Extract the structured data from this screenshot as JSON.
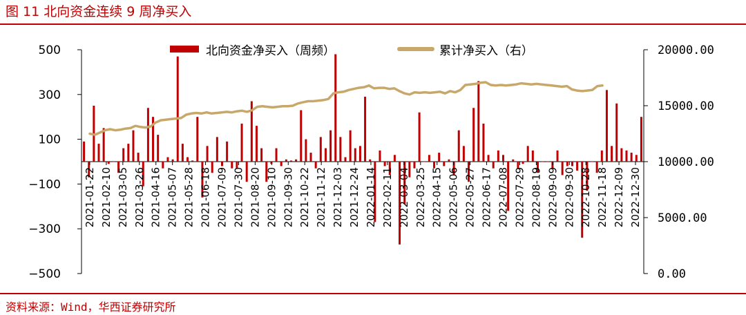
{
  "header": {
    "title": "图 11  北向资金连续 9 周净买入"
  },
  "footer": {
    "source": "资料来源：Wind，华西证券研究所"
  },
  "colors": {
    "bar": "#c00000",
    "line": "#c8a86a",
    "accent": "#c00000"
  },
  "chart_data": {
    "type": "bar+line",
    "title": "",
    "xlabel": "",
    "ylabel": "",
    "ylim": [
      -500,
      500
    ],
    "ylim_right": [
      0,
      20000
    ],
    "yticks": [
      "500",
      "300",
      "100",
      "−100",
      "−300",
      "−500"
    ],
    "yticks_right": [
      "20000.00",
      "15000.00",
      "10000.00",
      "5000.00",
      "0.00"
    ],
    "x_tick_labels": [
      "2021-01-22",
      "2021-02-10",
      "2021-03-05",
      "2021-03-26",
      "2021-04-16",
      "2021-05-07",
      "2021-05-28",
      "2021-06-18",
      "2021-07-09",
      "2021-07-30",
      "2021-08-20",
      "2021-09-10",
      "2021-09-30",
      "2021-10-22",
      "2021-11-12",
      "2021-12-03",
      "2021-12-24",
      "2022-01-14",
      "2022-02-11",
      "2022-03-04",
      "2022-03-25",
      "2022-04-15",
      "2022-05-06",
      "2022-05-27",
      "2022-06-17",
      "2022-07-08",
      "2022-07-29",
      "2022-08-19",
      "2022-09-09",
      "2022-09-30",
      "2022-10-28",
      "2022-11-18",
      "2022-12-09",
      "2022-12-30"
    ],
    "legend_position": "top-center",
    "series": [
      {
        "name": "北向资金净买入（周频）",
        "type": "bar",
        "axis": "left",
        "values": [
          90,
          -70,
          250,
          80,
          150,
          -10,
          0,
          -50,
          60,
          80,
          140,
          40,
          -110,
          240,
          200,
          120,
          -30,
          20,
          10,
          470,
          80,
          20,
          5,
          200,
          -160,
          70,
          -50,
          110,
          -20,
          90,
          -30,
          -30,
          170,
          -90,
          270,
          160,
          60,
          -90,
          -10,
          60,
          -20,
          10,
          5,
          10,
          230,
          100,
          40,
          -30,
          110,
          60,
          140,
          480,
          110,
          20,
          140,
          60,
          70,
          290,
          10,
          -270,
          50,
          -20,
          -60,
          30,
          -370,
          -190,
          -70,
          -30,
          220,
          0,
          30,
          -30,
          40,
          -20,
          10,
          -60,
          140,
          70,
          -90,
          240,
          360,
          170,
          30,
          -30,
          50,
          30,
          -220,
          10,
          -30,
          -10,
          70,
          50,
          -50,
          0,
          0,
          -30,
          50,
          -60,
          -20,
          -20,
          -40,
          -340,
          -130,
          0,
          -50,
          50,
          320,
          70,
          260,
          60,
          50,
          40,
          30,
          200
        ]
      },
      {
        "name": "累计净买入（右）",
        "type": "line",
        "axis": "right",
        "x_start": "2021-01-22",
        "x_end": "2022-11-18",
        "values": [
          12500,
          12400,
          12600,
          12800,
          12900,
          12800,
          12850,
          12950,
          13000,
          13200,
          13100,
          13050,
          13150,
          13500,
          13700,
          13750,
          13800,
          13850,
          13900,
          14200,
          14300,
          14350,
          14300,
          14400,
          14300,
          14350,
          14400,
          14450,
          14400,
          14500,
          14550,
          14450,
          14600,
          14900,
          14950,
          14900,
          14850,
          14900,
          14950,
          14950,
          15000,
          15200,
          15300,
          15400,
          15400,
          15450,
          15500,
          15600,
          16100,
          16200,
          16250,
          16400,
          16500,
          16600,
          16650,
          16800,
          16550,
          16600,
          16600,
          16500,
          16550,
          16300,
          16100,
          16000,
          16200,
          16150,
          16200,
          16150,
          16200,
          16250,
          16100,
          16300,
          16200,
          16400,
          16850,
          16900,
          16950,
          17050,
          17100,
          16850,
          16800,
          16850,
          16800,
          16850,
          16900,
          17000,
          16950,
          16900,
          16950,
          16900,
          16850,
          16800,
          16750,
          16700,
          16750,
          16450,
          16350,
          16300,
          16350,
          16400,
          16750,
          16800
        ]
      }
    ]
  }
}
